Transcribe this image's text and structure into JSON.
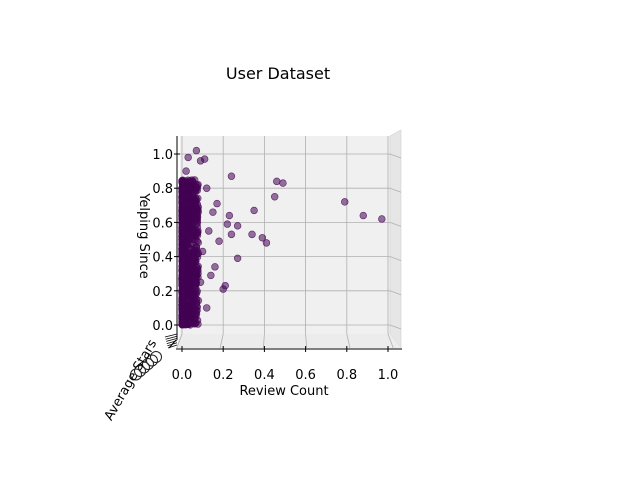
{
  "chart_data": {
    "type": "scatter",
    "projection": "3d",
    "title": "User Dataset",
    "xlabel": "Review Count",
    "ylabel": "Yelping Since",
    "zlabel": "Average Stars",
    "xlim": [
      0,
      1.0
    ],
    "ylim": [
      0,
      1.0
    ],
    "xticks": [
      "0.0",
      "0.2",
      "0.4",
      "0.6",
      "0.8",
      "1.0"
    ],
    "yticks": [
      "0.0",
      "0.2",
      "0.4",
      "0.6",
      "0.8",
      "1.0"
    ],
    "grid": true,
    "marker_color": "#440154",
    "pane_color": "#f0f0f0",
    "dense_band": {
      "x_range": [
        0.0,
        0.08
      ],
      "y_range": [
        0.0,
        0.85
      ]
    },
    "outliers": [
      {
        "x": 0.97,
        "y": 0.62
      },
      {
        "x": 0.88,
        "y": 0.64
      },
      {
        "x": 0.79,
        "y": 0.72
      },
      {
        "x": 0.49,
        "y": 0.83
      },
      {
        "x": 0.46,
        "y": 0.84
      },
      {
        "x": 0.45,
        "y": 0.75
      },
      {
        "x": 0.41,
        "y": 0.48
      },
      {
        "x": 0.39,
        "y": 0.51
      },
      {
        "x": 0.35,
        "y": 0.67
      },
      {
        "x": 0.34,
        "y": 0.53
      },
      {
        "x": 0.27,
        "y": 0.58
      },
      {
        "x": 0.27,
        "y": 0.39
      },
      {
        "x": 0.24,
        "y": 0.53
      },
      {
        "x": 0.24,
        "y": 0.87
      },
      {
        "x": 0.23,
        "y": 0.64
      },
      {
        "x": 0.22,
        "y": 0.59
      },
      {
        "x": 0.21,
        "y": 0.23
      },
      {
        "x": 0.2,
        "y": 0.21
      },
      {
        "x": 0.18,
        "y": 0.49
      },
      {
        "x": 0.17,
        "y": 0.71
      },
      {
        "x": 0.16,
        "y": 0.34
      },
      {
        "x": 0.15,
        "y": 0.66
      },
      {
        "x": 0.14,
        "y": 0.29
      },
      {
        "x": 0.13,
        "y": 0.55
      },
      {
        "x": 0.12,
        "y": 0.8
      },
      {
        "x": 0.12,
        "y": 0.1
      },
      {
        "x": 0.11,
        "y": 0.97
      },
      {
        "x": 0.1,
        "y": 0.43
      },
      {
        "x": 0.09,
        "y": 0.96
      },
      {
        "x": 0.09,
        "y": 0.25
      },
      {
        "x": 0.07,
        "y": 1.02
      },
      {
        "x": 0.03,
        "y": 0.98
      },
      {
        "x": 0.02,
        "y": 0.9
      }
    ]
  }
}
